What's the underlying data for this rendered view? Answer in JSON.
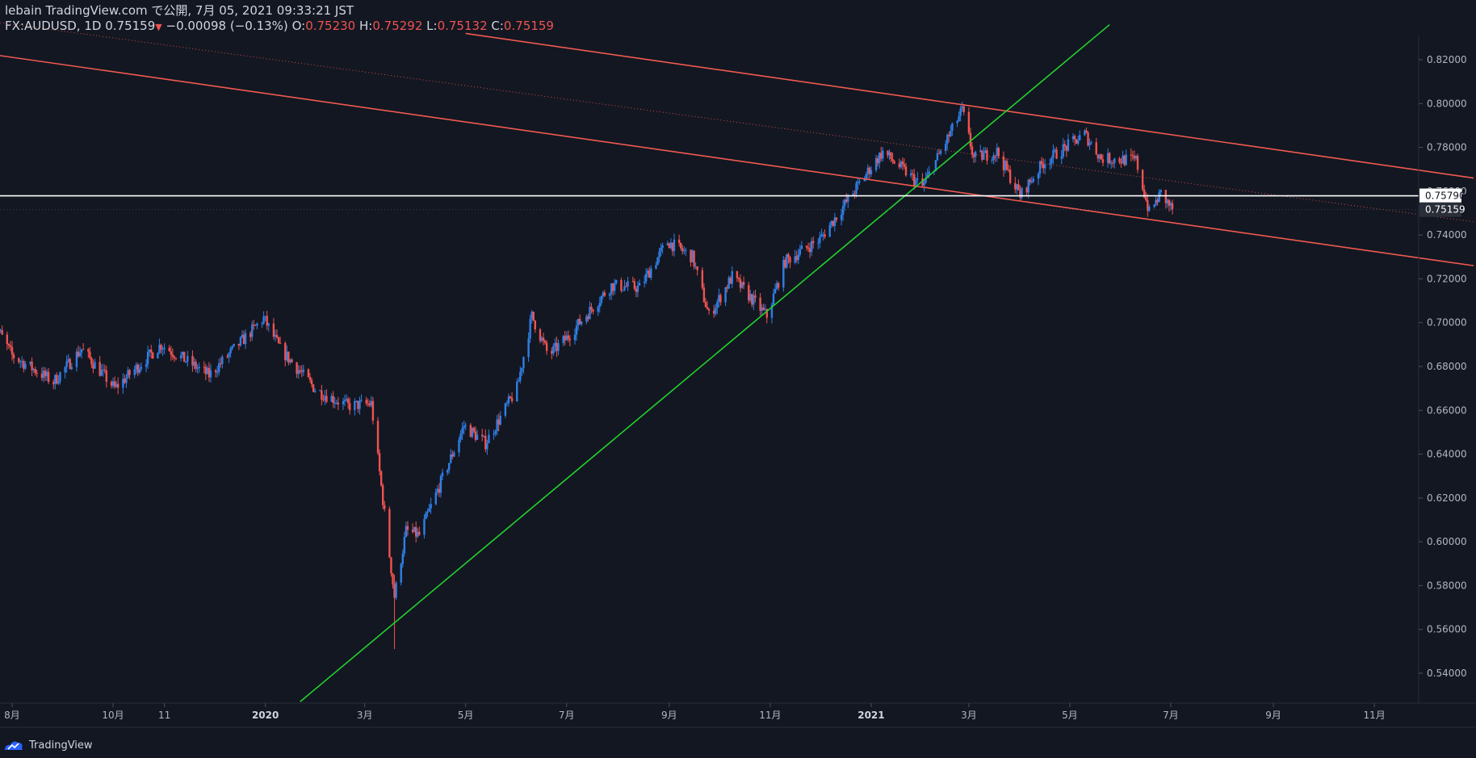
{
  "header": {
    "line1": "lebain TradingView.com で公開, 7月 05, 2021 09:33:21 JST",
    "symbol": "FX:AUDUSD, 1D",
    "last": "0.75159",
    "arrow": "▼",
    "change": "−0.00098 (−0.13%)",
    "o_label": "O:",
    "o_value": "0.75230",
    "h_label": "H:",
    "h_value": "0.75292",
    "l_label": "L:",
    "l_value": "0.75132",
    "c_label": "C:",
    "c_value": "0.75159"
  },
  "footer": {
    "brand": "TradingView"
  },
  "colors": {
    "background": "#131722",
    "up": "#2f7fe6",
    "down": "#ef5350",
    "channel": "#f05a50",
    "trend": "#22d32c",
    "hline": "#ffffff",
    "axis_text": "#b2b5be"
  },
  "chart_data": {
    "type": "candlestick",
    "symbol": "FX:AUDUSD",
    "interval": "1D",
    "y_ticks": [
      "0.82000",
      "0.80000",
      "0.78000",
      "0.76000",
      "0.74000",
      "0.72000",
      "0.70000",
      "0.68000",
      "0.66000",
      "0.64000",
      "0.62000",
      "0.60000",
      "0.58000",
      "0.56000",
      "0.54000"
    ],
    "x_ticks": [
      {
        "label": "8月",
        "date": "2019-08-01"
      },
      {
        "label": "10月",
        "date": "2019-10-01"
      },
      {
        "label": "11",
        "date": "2019-11-01"
      },
      {
        "label": "2020",
        "date": "2020-01-01"
      },
      {
        "label": "3月",
        "date": "2020-03-01"
      },
      {
        "label": "5月",
        "date": "2020-05-01"
      },
      {
        "label": "7月",
        "date": "2020-07-01"
      },
      {
        "label": "9月",
        "date": "2020-09-01"
      },
      {
        "label": "11月",
        "date": "2020-11-01"
      },
      {
        "label": "2021",
        "date": "2021-01-01"
      },
      {
        "label": "3月",
        "date": "2021-03-01"
      },
      {
        "label": "5月",
        "date": "2021-05-01"
      },
      {
        "label": "7月",
        "date": "2021-07-01"
      },
      {
        "label": "9月",
        "date": "2021-09-01"
      },
      {
        "label": "11月",
        "date": "2021-11-01"
      }
    ],
    "ylim": [
      0.53,
      0.83
    ],
    "price_anchors": [
      [
        "2019-07-19",
        0.703
      ],
      [
        "2019-08-01",
        0.685
      ],
      [
        "2019-08-26",
        0.673
      ],
      [
        "2019-09-12",
        0.688
      ],
      [
        "2019-10-02",
        0.67
      ],
      [
        "2019-10-30",
        0.69
      ],
      [
        "2019-11-28",
        0.676
      ],
      [
        "2019-12-31",
        0.702
      ],
      [
        "2020-01-10",
        0.688
      ],
      [
        "2020-02-01",
        0.669
      ],
      [
        "2020-02-20",
        0.662
      ],
      [
        "2020-03-05",
        0.663
      ],
      [
        "2020-03-19",
        0.575
      ],
      [
        "2020-03-26",
        0.605
      ],
      [
        "2020-04-03",
        0.603
      ],
      [
        "2020-04-30",
        0.653
      ],
      [
        "2020-05-13",
        0.645
      ],
      [
        "2020-06-01",
        0.67
      ],
      [
        "2020-06-10",
        0.703
      ],
      [
        "2020-06-20",
        0.685
      ],
      [
        "2020-07-01",
        0.693
      ],
      [
        "2020-07-28",
        0.717
      ],
      [
        "2020-08-14",
        0.716
      ],
      [
        "2020-08-31",
        0.737
      ],
      [
        "2020-09-15",
        0.73
      ],
      [
        "2020-09-25",
        0.703
      ],
      [
        "2020-10-09",
        0.721
      ],
      [
        "2020-10-30",
        0.703
      ],
      [
        "2020-11-10",
        0.728
      ],
      [
        "2020-12-01",
        0.738
      ],
      [
        "2020-12-31",
        0.77
      ],
      [
        "2021-01-08",
        0.778
      ],
      [
        "2021-02-01",
        0.762
      ],
      [
        "2021-02-25",
        0.797
      ],
      [
        "2021-03-04",
        0.775
      ],
      [
        "2021-03-18",
        0.778
      ],
      [
        "2021-04-01",
        0.758
      ],
      [
        "2021-04-15",
        0.773
      ],
      [
        "2021-05-10",
        0.786
      ],
      [
        "2021-05-20",
        0.775
      ],
      [
        "2021-06-10",
        0.774
      ],
      [
        "2021-06-18",
        0.75
      ],
      [
        "2021-06-25",
        0.759
      ],
      [
        "2021-07-02",
        0.7516
      ]
    ],
    "last_price": 0.75159,
    "horizontal_line": {
      "price": 0.7579,
      "label": "0.75790"
    },
    "last_price_label": "0.75159",
    "channel_lines": [
      {
        "from": [
          "2019-07-19",
          0.8225
        ],
        "to": [
          "2021-12-31",
          0.726
        ]
      },
      {
        "from": [
          "2020-05-01",
          0.832
        ],
        "to": [
          "2021-12-31",
          0.766
        ]
      }
    ],
    "dotted_midline": {
      "from": [
        "2019-07-19",
        0.8375
      ],
      "to": [
        "2021-12-31",
        0.746
      ]
    },
    "trendline": {
      "from": [
        "2020-01-22",
        0.527
      ],
      "to": [
        "2021-05-25",
        0.836
      ]
    }
  }
}
